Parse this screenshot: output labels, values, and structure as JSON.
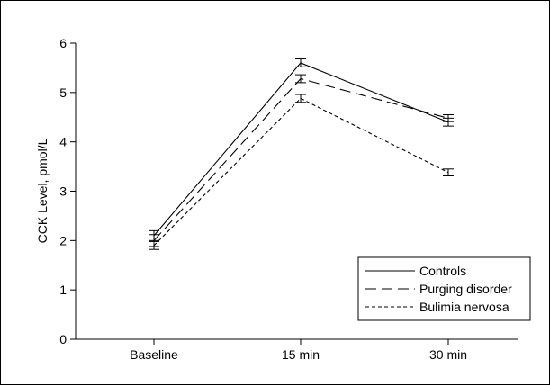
{
  "chart_data": {
    "type": "line",
    "ylabel": "CCK Level, pmol/L",
    "xlabel": "",
    "title": "",
    "categories": [
      "Baseline",
      "15 min",
      "30 min"
    ],
    "ylim": [
      0,
      6
    ],
    "yticks": [
      0,
      1,
      2,
      3,
      4,
      5,
      6
    ],
    "grid": false,
    "legend_position": "bottom-right",
    "series": [
      {
        "name": "Controls",
        "style": "solid",
        "values": [
          2.1,
          5.6,
          4.4
        ],
        "errors": [
          0.1,
          0.08,
          0.08
        ]
      },
      {
        "name": "Purging disorder",
        "style": "long-dash",
        "values": [
          2.0,
          5.28,
          4.48
        ],
        "errors": [
          0.12,
          0.08,
          0.07
        ]
      },
      {
        "name": "Bulimia nervosa",
        "style": "short-dash",
        "values": [
          1.9,
          4.88,
          3.38
        ],
        "errors": [
          0.08,
          0.08,
          0.07
        ]
      }
    ],
    "colors": {
      "line": "#000000"
    }
  }
}
